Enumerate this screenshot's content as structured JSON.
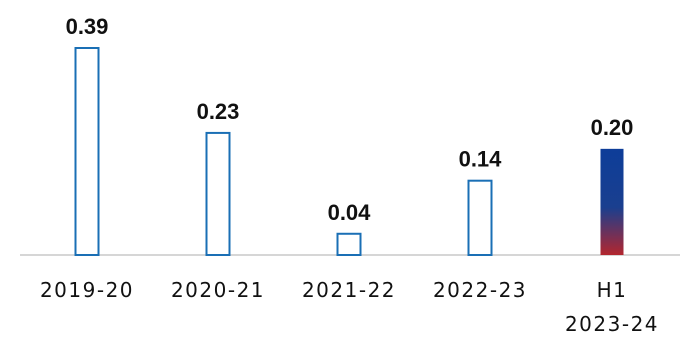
{
  "chart_data": {
    "type": "bar",
    "title": "",
    "xlabel": "",
    "ylabel": "",
    "categories": [
      [
        "2019-20"
      ],
      [
        "2020-21"
      ],
      [
        "2021-22"
      ],
      [
        "2022-23"
      ],
      [
        "H1",
        "2023-24"
      ]
    ],
    "values": [
      0.39,
      0.23,
      0.04,
      0.14,
      0.2
    ],
    "value_labels": [
      "0.39",
      "0.23",
      "0.04",
      "0.14",
      "0.20"
    ],
    "ylim": [
      0,
      0.39
    ],
    "grid": false,
    "styles": [
      {
        "fill": "outline",
        "stroke": "#1a6fb5"
      },
      {
        "fill": "outline",
        "stroke": "#1a6fb5"
      },
      {
        "fill": "outline",
        "stroke": "#1a6fb5"
      },
      {
        "fill": "outline",
        "stroke": "#1a6fb5"
      },
      {
        "fill": "gradient",
        "top": "#0d3d99",
        "mid": "#1a3f8f",
        "bottom": "#b3262e"
      }
    ],
    "baseline_color": "#c8c8c8"
  }
}
